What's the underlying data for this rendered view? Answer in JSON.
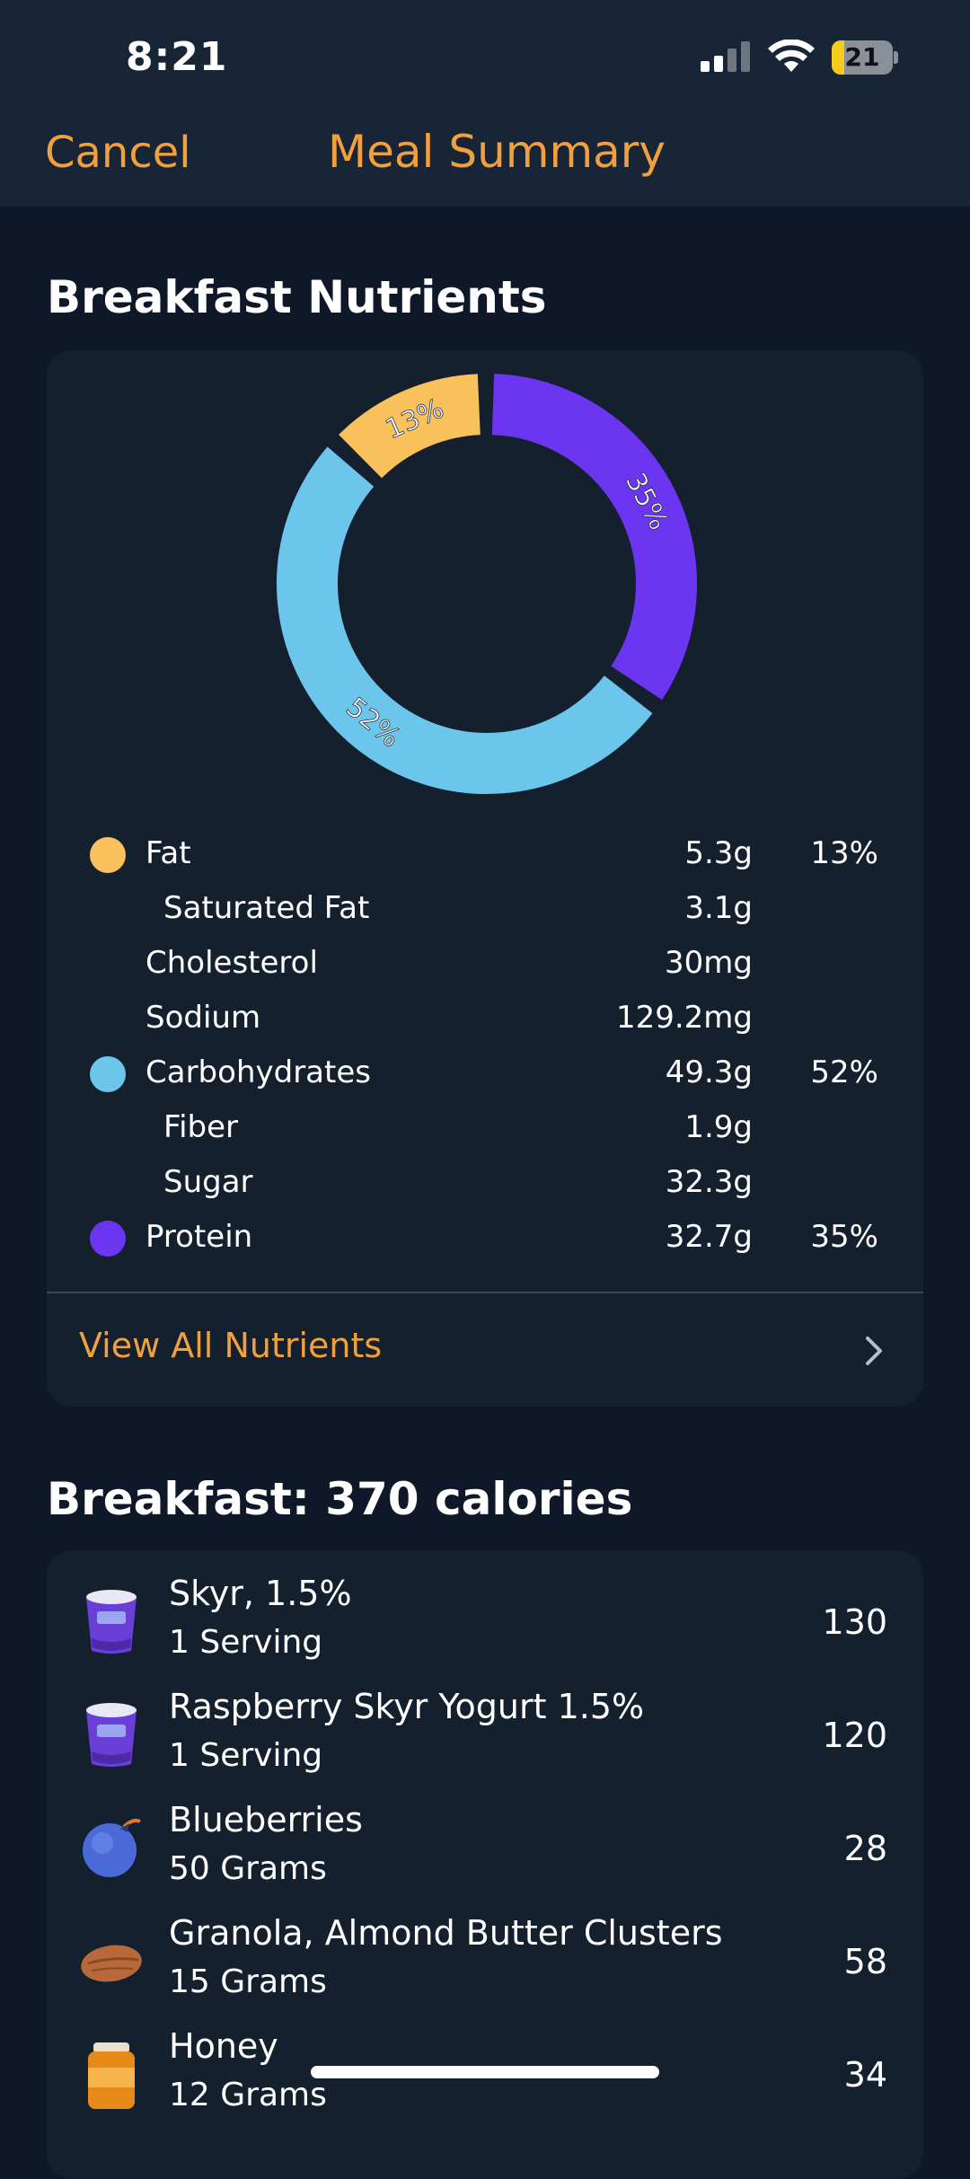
{
  "status_bar": {
    "time": "8:21",
    "battery": "21",
    "battery_level": 0.21
  },
  "nav": {
    "cancel_label": "Cancel",
    "title": "Meal Summary"
  },
  "nutrients_section": {
    "title": "Breakfast Nutrients",
    "chart_data": {
      "type": "pie",
      "style": "donut",
      "categories": [
        "Fat",
        "Carbohydrates",
        "Protein"
      ],
      "values": [
        13,
        52,
        35
      ],
      "labels": [
        "13%",
        "52%",
        "35%"
      ],
      "colors": [
        "#f8c15c",
        "#6cc5ea",
        "#6b35f2"
      ]
    },
    "rows": [
      {
        "label": "Fat",
        "amount": "5.3g",
        "pct": "13%",
        "dot": "#f8c15c",
        "indent": false
      },
      {
        "label": "Saturated Fat",
        "amount": "3.1g",
        "pct": "",
        "dot": "",
        "indent": true
      },
      {
        "label": "Cholesterol",
        "amount": "30mg",
        "pct": "",
        "dot": "",
        "indent": false
      },
      {
        "label": "Sodium",
        "amount": "129.2mg",
        "pct": "",
        "dot": "",
        "indent": false
      },
      {
        "label": "Carbohydrates",
        "amount": "49.3g",
        "pct": "52%",
        "dot": "#6cc5ea",
        "indent": false
      },
      {
        "label": "Fiber",
        "amount": "1.9g",
        "pct": "",
        "dot": "",
        "indent": true
      },
      {
        "label": "Sugar",
        "amount": "32.3g",
        "pct": "",
        "dot": "",
        "indent": true
      },
      {
        "label": "Protein",
        "amount": "32.7g",
        "pct": "35%",
        "dot": "#6b35f2",
        "indent": false
      }
    ],
    "view_all_label": "View All Nutrients"
  },
  "foods_section": {
    "title": "Breakfast: 370 calories",
    "items": [
      {
        "name": "Skyr, 1.5%",
        "qty": "1 Serving",
        "calories": "130",
        "icon": "yogurt-cup-icon"
      },
      {
        "name": "Raspberry Skyr Yogurt 1.5%",
        "qty": "1 Serving",
        "calories": "120",
        "icon": "yogurt-cup-icon"
      },
      {
        "name": "Blueberries",
        "qty": "50 Grams",
        "calories": "28",
        "icon": "blueberry-icon"
      },
      {
        "name": "Granola, Almond Butter Clusters",
        "qty": "15 Grams",
        "calories": "58",
        "icon": "almond-icon"
      },
      {
        "name": "Honey",
        "qty": "12 Grams",
        "calories": "34",
        "icon": "honey-jar-icon"
      }
    ]
  }
}
